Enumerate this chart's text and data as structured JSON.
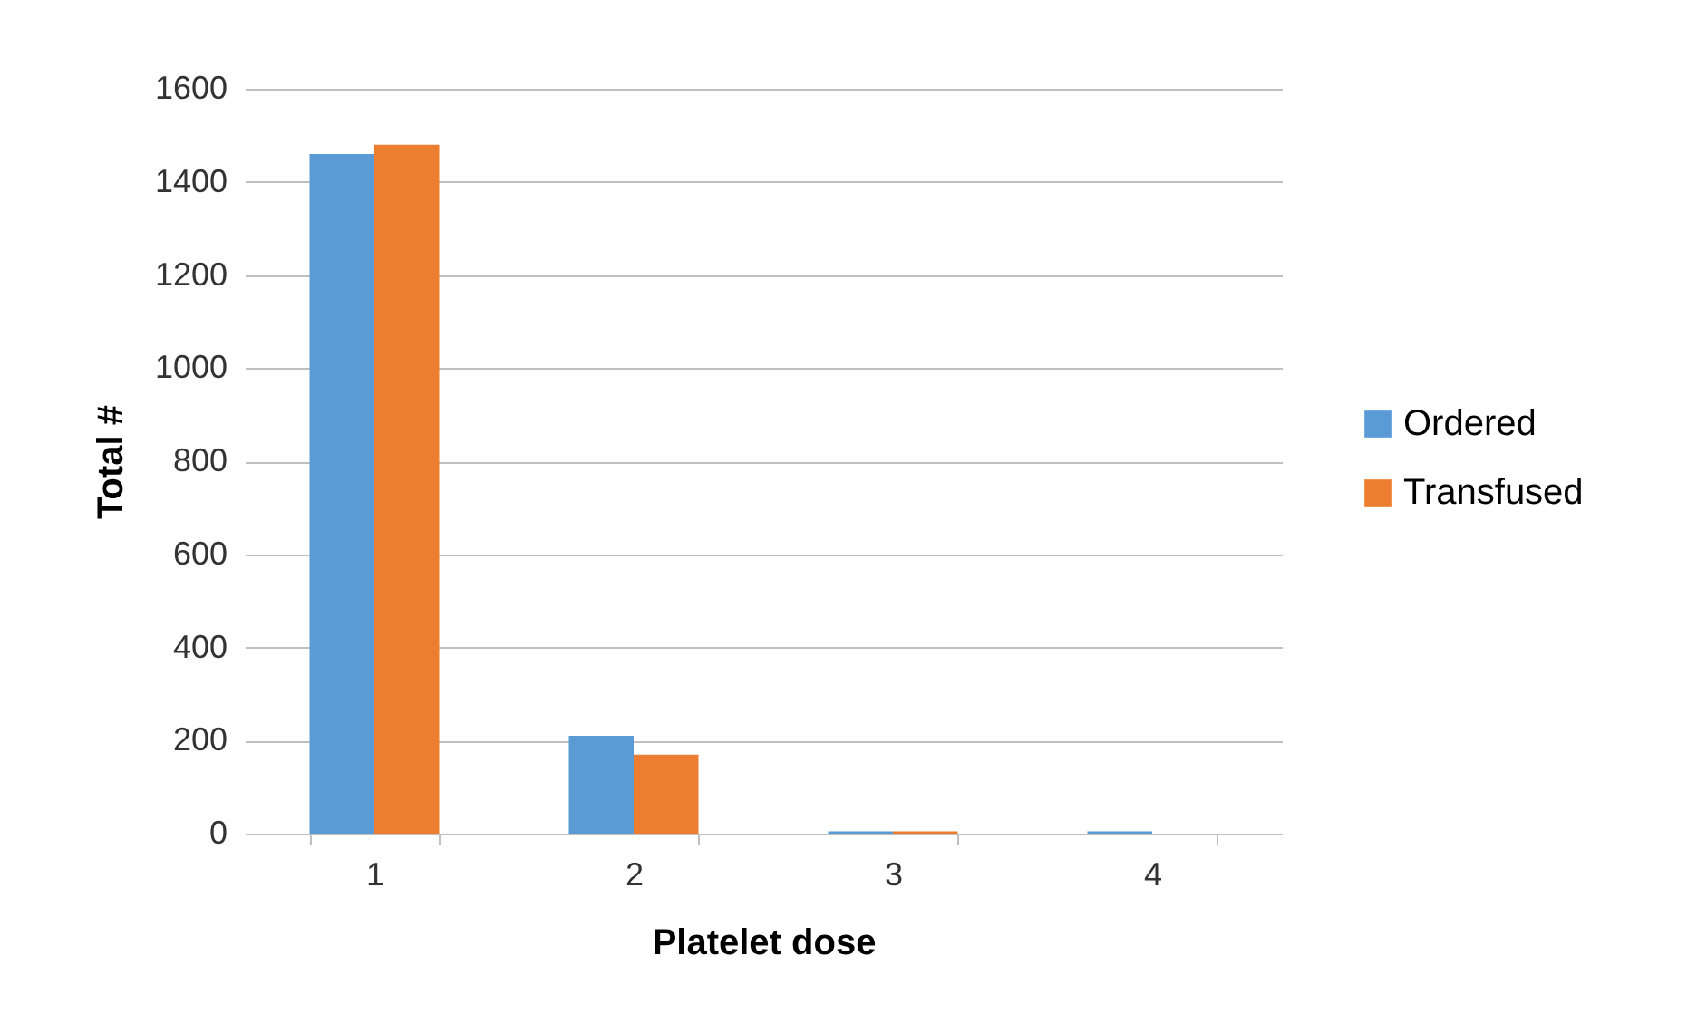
{
  "chart_data": {
    "type": "bar",
    "xlabel": "Platelet dose",
    "ylabel": "Total #",
    "categories": [
      "1",
      "2",
      "3",
      "4"
    ],
    "series": [
      {
        "name": "Ordered",
        "color": "#5b9bd5",
        "values": [
          1460,
          210,
          5,
          5
        ]
      },
      {
        "name": "Transfused",
        "color": "#ed7d31",
        "values": [
          1480,
          170,
          5,
          0
        ]
      }
    ],
    "ylim": [
      0,
      1600
    ],
    "yticks": [
      0,
      200,
      400,
      600,
      800,
      1000,
      1200,
      1400,
      1600
    ],
    "grid": "y",
    "legend": "right"
  }
}
